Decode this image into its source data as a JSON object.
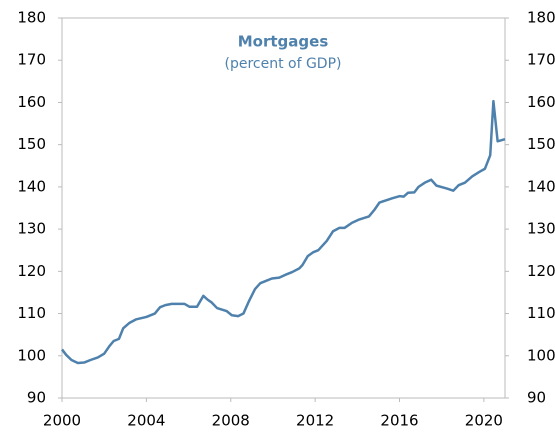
{
  "chart_data": {
    "type": "line",
    "title": "Mortgages",
    "subtitle": "(percent of GDP)",
    "x": [
      2000.0,
      2000.2,
      2000.45,
      2000.75,
      2001.05,
      2001.35,
      2001.7,
      2002.0,
      2002.25,
      2002.45,
      2002.7,
      2002.9,
      2003.2,
      2003.5,
      2004.0,
      2004.4,
      2004.65,
      2004.9,
      2005.2,
      2005.8,
      2006.05,
      2006.4,
      2006.7,
      2006.9,
      2007.1,
      2007.35,
      2007.8,
      2008.05,
      2008.35,
      2008.6,
      2008.85,
      2009.15,
      2009.4,
      2009.65,
      2009.95,
      2010.3,
      2010.6,
      2010.9,
      2011.25,
      2011.4,
      2011.65,
      2011.9,
      2012.15,
      2012.55,
      2012.85,
      2013.15,
      2013.4,
      2013.75,
      2014.1,
      2014.55,
      2014.8,
      2015.05,
      2015.35,
      2015.65,
      2016.0,
      2016.2,
      2016.4,
      2016.7,
      2016.9,
      2017.2,
      2017.5,
      2017.75,
      2018.25,
      2018.55,
      2018.8,
      2019.1,
      2019.45,
      2019.8,
      2020.05,
      2020.3,
      2020.45,
      2020.65,
      2021.0
    ],
    "series": [
      {
        "color": "#4f81ad",
        "values": [
          101.5,
          100.2,
          99,
          98.3,
          98.4,
          99,
          99.6,
          100.5,
          102.3,
          103.5,
          104,
          106.5,
          107.8,
          108.6,
          109.2,
          110,
          111.5,
          112,
          112.3,
          112.3,
          111.6,
          111.6,
          114.2,
          113.3,
          112.6,
          111.3,
          110.6,
          109.6,
          109.4,
          110,
          112.8,
          115.8,
          117.2,
          117.7,
          118.3,
          118.5,
          119.2,
          119.8,
          120.7,
          121.5,
          123.6,
          124.5,
          125,
          127.2,
          129.5,
          130.3,
          130.3,
          131.5,
          132.3,
          133,
          134.5,
          136.3,
          136.8,
          137.3,
          137.8,
          137.7,
          138.6,
          138.7,
          140,
          141,
          141.7,
          140.3,
          139.6,
          139.1,
          140.4,
          141,
          142.5,
          143.6,
          144.3,
          147.5,
          160.3,
          150.8,
          151.3
        ]
      }
    ],
    "xlim": [
      2000,
      2021
    ],
    "xticks": [
      2000,
      2004,
      2008,
      2012,
      2016,
      2020
    ],
    "ylim": [
      90,
      180
    ],
    "yticks": [
      90,
      100,
      110,
      120,
      130,
      140,
      150,
      160,
      170,
      180
    ],
    "y2lim": [
      90,
      180
    ],
    "y2ticks": [
      90,
      100,
      110,
      120,
      130,
      140,
      150,
      160,
      170,
      180
    ]
  }
}
